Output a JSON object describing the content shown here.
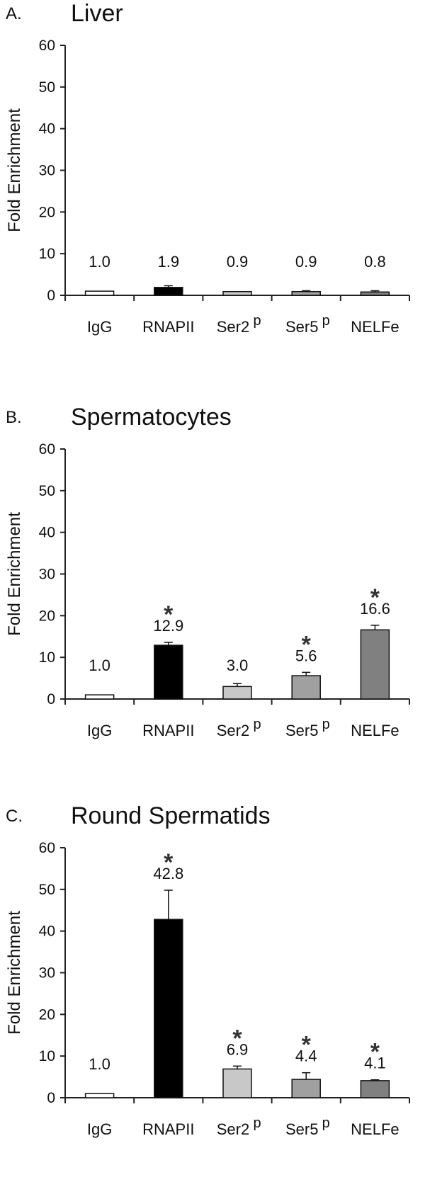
{
  "chart_data": [
    {
      "type": "bar",
      "panel": "A.",
      "title": "Liver",
      "ylabel": "Fold Enrichment",
      "ylim": [
        0,
        60
      ],
      "yticks": [
        "0",
        "10",
        "20",
        "30",
        "40",
        "50",
        "60"
      ],
      "categories": [
        "IgG",
        "RNAPII",
        "Ser2",
        "Ser5",
        "NELFe"
      ],
      "superscripts": [
        "",
        "",
        "p",
        "p",
        ""
      ],
      "values": [
        1.0,
        1.9,
        0.9,
        0.9,
        0.8
      ],
      "errors": [
        0.0,
        0.4,
        0.0,
        0.2,
        0.3
      ],
      "value_labels": [
        "1.0",
        "1.9",
        "0.9",
        "0.9",
        "0.8"
      ],
      "significant": [
        false,
        false,
        false,
        false,
        false
      ],
      "bar_colors": [
        "#ffffff",
        "#000000",
        "#c8c8c8",
        "#a0a0a0",
        "#808080"
      ]
    },
    {
      "type": "bar",
      "panel": "B.",
      "title": "Spermatocytes",
      "ylabel": "Fold Enrichment",
      "ylim": [
        0,
        60
      ],
      "yticks": [
        "0",
        "10",
        "20",
        "30",
        "40",
        "50",
        "60"
      ],
      "categories": [
        "IgG",
        "RNAPII",
        "Ser2",
        "Ser5",
        "NELFe"
      ],
      "superscripts": [
        "",
        "",
        "p",
        "p",
        ""
      ],
      "values": [
        1.0,
        12.9,
        3.0,
        5.6,
        16.6
      ],
      "errors": [
        0.0,
        0.7,
        0.7,
        0.8,
        1.1
      ],
      "value_labels": [
        "1.0",
        "12.9",
        "3.0",
        "5.6",
        "16.6"
      ],
      "significant": [
        false,
        true,
        false,
        true,
        true
      ],
      "bar_colors": [
        "#ffffff",
        "#000000",
        "#c8c8c8",
        "#a0a0a0",
        "#808080"
      ]
    },
    {
      "type": "bar",
      "panel": "C.",
      "title": "Round Spermatids",
      "ylabel": "Fold Enrichment",
      "ylim": [
        0,
        60
      ],
      "yticks": [
        "0",
        "10",
        "20",
        "30",
        "40",
        "50",
        "60"
      ],
      "categories": [
        "IgG",
        "RNAPII",
        "Ser2",
        "Ser5",
        "NELFe"
      ],
      "superscripts": [
        "",
        "",
        "p",
        "p",
        ""
      ],
      "values": [
        1.0,
        42.8,
        6.9,
        4.4,
        4.1
      ],
      "errors": [
        0.0,
        7.0,
        0.7,
        1.6,
        0.2
      ],
      "value_labels": [
        "1.0",
        "42.8",
        "6.9",
        "4.4",
        "4.1"
      ],
      "significant": [
        false,
        true,
        true,
        true,
        true
      ],
      "bar_colors": [
        "#ffffff",
        "#000000",
        "#c8c8c8",
        "#a0a0a0",
        "#808080"
      ]
    }
  ],
  "significance_marker": "*"
}
